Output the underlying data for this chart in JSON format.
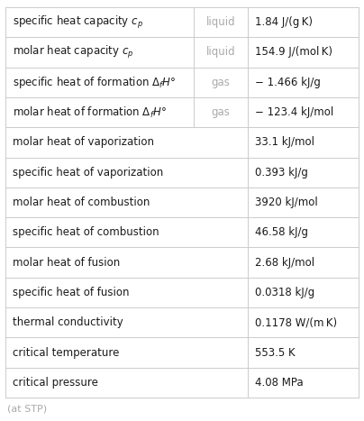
{
  "rows": [
    {
      "col1": "specific heat capacity $c_p$",
      "col2": "liquid",
      "col3": "1.84 J/(g K)",
      "has_col2": true
    },
    {
      "col1": "molar heat capacity $c_p$",
      "col2": "liquid",
      "col3": "154.9 J/(mol K)",
      "has_col2": true
    },
    {
      "col1": "specific heat of formation $\\Delta_f H°$",
      "col2": "gas",
      "col3": "− 1.466 kJ/g",
      "has_col2": true
    },
    {
      "col1": "molar heat of formation $\\Delta_f H°$",
      "col2": "gas",
      "col3": "− 123.4 kJ/mol",
      "has_col2": true
    },
    {
      "col1": "molar heat of vaporization",
      "col2": "",
      "col3": "33.1 kJ/mol",
      "has_col2": false
    },
    {
      "col1": "specific heat of vaporization",
      "col2": "",
      "col3": "0.393 kJ/g",
      "has_col2": false
    },
    {
      "col1": "molar heat of combustion",
      "col2": "",
      "col3": "3920 kJ/mol",
      "has_col2": false
    },
    {
      "col1": "specific heat of combustion",
      "col2": "",
      "col3": "46.58 kJ/g",
      "has_col2": false
    },
    {
      "col1": "molar heat of fusion",
      "col2": "",
      "col3": "2.68 kJ/mol",
      "has_col2": false
    },
    {
      "col1": "specific heat of fusion",
      "col2": "",
      "col3": "0.0318 kJ/g",
      "has_col2": false
    },
    {
      "col1": "thermal conductivity",
      "col2": "",
      "col3": "0.1178 W/(m K)",
      "has_col2": false
    },
    {
      "col1": "critical temperature",
      "col2": "",
      "col3": "553.5 K",
      "has_col2": false
    },
    {
      "col1": "critical pressure",
      "col2": "",
      "col3": "4.08 MPa",
      "has_col2": false
    }
  ],
  "footer": "(at STP)",
  "col2_color": "#aaaaaa",
  "col1_color": "#1a1a1a",
  "col3_color": "#1a1a1a",
  "line_color": "#cccccc",
  "bg_color": "#ffffff",
  "fontsize_main": 8.5,
  "fontsize_footer": 8.0
}
